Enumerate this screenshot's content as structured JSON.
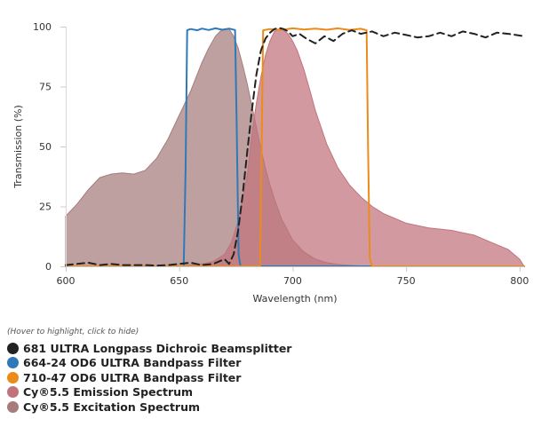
{
  "chart_data": {
    "type": "area",
    "xlabel": "Wavelength (nm)",
    "ylabel": "Transmission (%)",
    "xlim": [
      600,
      802
    ],
    "ylim": [
      0,
      100
    ],
    "xticks": [
      600,
      650,
      700,
      750,
      800
    ],
    "yticks": [
      0,
      25,
      50,
      75,
      100
    ],
    "grid": false,
    "legend_position": "bottom",
    "legend_hint": "(Hover to highlight, click to hide)",
    "series": [
      {
        "name": "Cy®5.5 Excitation Spectrum",
        "kind": "area",
        "color": "#a67c7c",
        "x": [
          600,
          605,
          610,
          615,
          620,
          625,
          630,
          635,
          640,
          645,
          650,
          655,
          660,
          663,
          666,
          668,
          670,
          672,
          674,
          676,
          678,
          680,
          682,
          684,
          686,
          688,
          690,
          692,
          695,
          700,
          705,
          710,
          715,
          720,
          725,
          730,
          740
        ],
        "y": [
          21,
          26,
          32,
          37,
          38.5,
          39,
          38.5,
          40,
          45,
          53,
          63,
          73,
          85,
          91,
          96,
          98,
          99,
          99,
          96,
          91,
          84,
          76,
          67,
          58,
          49,
          41,
          34,
          28,
          20,
          11,
          6,
          3,
          1.5,
          0.8,
          0.4,
          0.2,
          0
        ]
      },
      {
        "name": "Cy®5.5 Emission Spectrum",
        "kind": "area",
        "color": "#c0737b",
        "x": [
          650,
          660,
          665,
          670,
          673,
          676,
          678,
          680,
          682,
          684,
          686,
          688,
          690,
          692,
          694,
          696,
          698,
          700,
          702,
          705,
          708,
          710,
          715,
          720,
          725,
          730,
          735,
          740,
          745,
          750,
          755,
          760,
          765,
          770,
          775,
          780,
          785,
          790,
          795,
          800,
          802
        ],
        "y": [
          0,
          1,
          2,
          5,
          10,
          19,
          28,
          38,
          55,
          68,
          79,
          88,
          94,
          98,
          99,
          98.5,
          97,
          94,
          90,
          82,
          72,
          65,
          51,
          41,
          34,
          29,
          25,
          22,
          20,
          18,
          17,
          16,
          15.5,
          15,
          14,
          13,
          11,
          9,
          7,
          3,
          0
        ]
      },
      {
        "name": "664-24 OD6 ULTRA Bandpass Filter",
        "kind": "line",
        "color": "#2e7ab8",
        "x": [
          600,
          652,
          652.8,
          653.5,
          655,
          658,
          660,
          663,
          666,
          669,
          672,
          674.6,
          675.3,
          676.2,
          677,
          802
        ],
        "y": [
          0,
          0,
          40,
          98.5,
          99,
          98.5,
          99.2,
          98.6,
          99.3,
          98.7,
          99.2,
          98.6,
          60,
          5,
          0,
          0
        ]
      },
      {
        "name": "710-47 OD6 ULTRA Bandpass Filter",
        "kind": "line",
        "color": "#ec8b1a",
        "x": [
          600,
          685.6,
          686.3,
          687,
          690,
          695,
          700,
          705,
          710,
          715,
          720,
          725,
          730,
          732.6,
          733.2,
          734,
          735,
          802
        ],
        "y": [
          0,
          0,
          45,
          98.5,
          99,
          98.6,
          99.3,
          98.8,
          99.2,
          98.7,
          99.3,
          98.6,
          99.1,
          98.5,
          50,
          3,
          0,
          0
        ]
      },
      {
        "name": "681 ULTRA Longpass Dichroic Beamsplitter",
        "kind": "line",
        "dash": true,
        "color": "#222222",
        "x": [
          600,
          605,
          610,
          615,
          620,
          625,
          630,
          635,
          640,
          645,
          650,
          655,
          660,
          665,
          670,
          672,
          674,
          676,
          678,
          680,
          682,
          684,
          686,
          688,
          690,
          692,
          694,
          696,
          698,
          700,
          703,
          706,
          710,
          714,
          718,
          722,
          726,
          730,
          735,
          740,
          745,
          750,
          755,
          760,
          765,
          770,
          775,
          780,
          785,
          790,
          795,
          802
        ],
        "y": [
          0.5,
          1,
          1.5,
          0.5,
          1,
          0.5,
          0.5,
          0.5,
          0.3,
          0.5,
          1,
          1.5,
          0.5,
          1,
          3,
          1,
          5,
          15,
          30,
          48,
          65,
          80,
          90,
          95,
          97.5,
          99,
          99.5,
          99,
          98,
          96,
          97,
          95,
          93,
          96,
          94,
          97,
          98.5,
          97,
          98,
          96,
          97.5,
          96.5,
          95.5,
          96,
          97.5,
          96,
          98,
          97,
          95.5,
          97.5,
          97,
          96
        ]
      }
    ]
  }
}
